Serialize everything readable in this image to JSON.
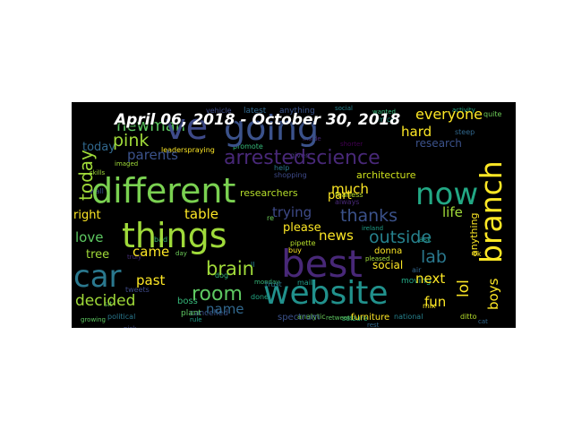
{
  "title": "April 06, 2018 - October 30, 2018",
  "colors": {
    "panel_background": "#000000",
    "page_background": "#ffffff"
  },
  "words": [
    "different",
    "best",
    "going",
    "things",
    "website",
    "car",
    "now",
    "branch",
    "brain",
    "room",
    "arrestedscience",
    "ve",
    "outside",
    "everyone",
    "today",
    "pink",
    "newman",
    "decided",
    "lab",
    "thanks",
    "trying",
    "table",
    "right",
    "love",
    "tree",
    "came",
    "past",
    "name",
    "parents",
    "hard",
    "research",
    "much",
    "part",
    "news",
    "please",
    "fun",
    "life",
    "lol",
    "next",
    "boys",
    "social",
    "anything",
    "researchers",
    "architecture",
    "latest",
    "vehicle",
    "promote",
    "leaderspraying",
    "imaged",
    "furniture",
    "spectrum",
    "rest",
    "plant",
    "boss",
    "political",
    "growing",
    "analytic",
    "seizure",
    "cancelled",
    "rule",
    "moving",
    "air",
    "activity",
    "pipette",
    "buy",
    "donna",
    "pleased",
    "national",
    "ditto",
    "cat",
    "ireland",
    "fearless",
    "always",
    "monday",
    "inside",
    "wanted",
    "quite",
    "shorter",
    "mice",
    "steep",
    "given",
    "help",
    "shopping",
    "ok",
    "re",
    "tweets",
    "mail",
    "ll",
    "day",
    "retweets",
    "trust",
    "truly",
    "bad",
    "skills",
    "wall",
    "done",
    "dog",
    "mix",
    "sit",
    "ask",
    "pick"
  ]
}
